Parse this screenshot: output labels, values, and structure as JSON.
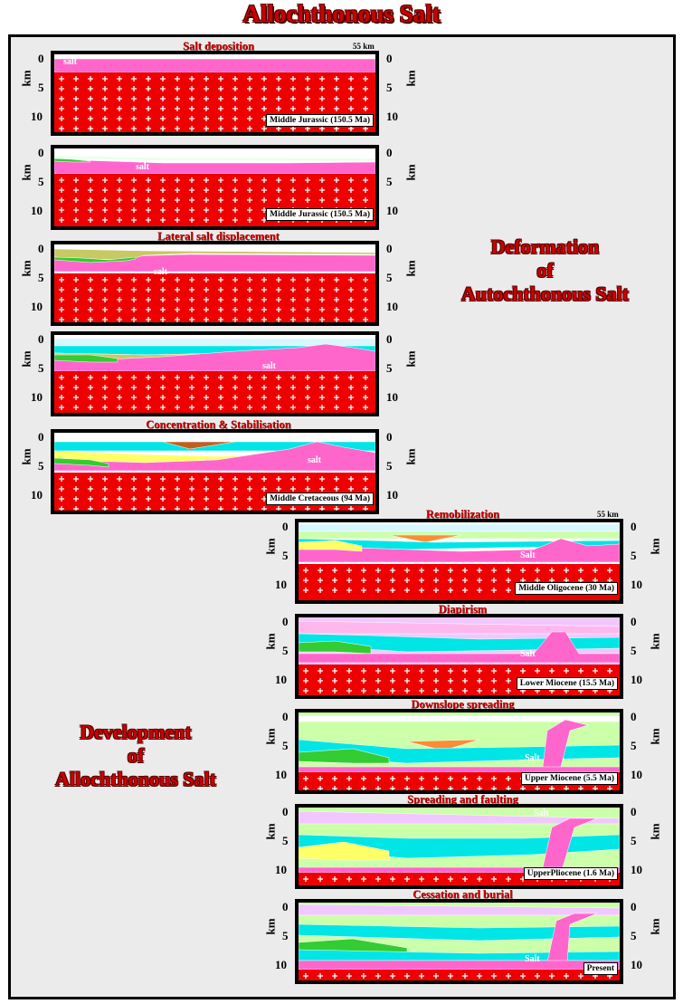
{
  "page_title": "Allochthonous Salt",
  "section_autochthonous": [
    "Deformation",
    "of",
    "Autochthonous Salt"
  ],
  "section_allochthonous": [
    "Development",
    "of",
    "Allochthonous Salt"
  ],
  "depth_unit": "km",
  "scale_label": "55 km",
  "colors": {
    "salt": "#ff66cc",
    "basement": "#ee0000",
    "frame_bg": "#ebebeb",
    "title": "#cc0000"
  },
  "panels": [
    {
      "title": "Salt deposition",
      "age": "Middle Jurassic (150.5 Ma)",
      "salt_label": "salt",
      "left_ticks": [
        "0",
        "5",
        "10"
      ],
      "right_ticks": [
        "0",
        "5",
        "10"
      ],
      "show_scale": true
    },
    {
      "title": "",
      "age": "Middle Jurassic (150.5 Ma)",
      "salt_label": "salt",
      "left_ticks": [
        "0",
        "5",
        "10"
      ],
      "right_ticks": [
        "0",
        "5",
        "10"
      ],
      "show_scale": false
    },
    {
      "title": "Lateral salt displacement",
      "age": "",
      "salt_label": "salt",
      "left_ticks": [
        "0",
        "5",
        "10"
      ],
      "right_ticks": [
        "0",
        "5",
        "10"
      ],
      "show_scale": false
    },
    {
      "title": "",
      "age": "",
      "salt_label": "salt",
      "left_ticks": [
        "0",
        "5",
        "10"
      ],
      "right_ticks": [
        "0",
        "5",
        "10"
      ],
      "show_scale": false
    },
    {
      "title": "Concentration & Stabilisation",
      "age": "Middle Cretaceous  (94 Ma)",
      "salt_label": "salt",
      "left_ticks": [
        "0",
        "5",
        "10"
      ],
      "right_ticks": [
        "0",
        "5",
        "10"
      ],
      "show_scale": false
    },
    {
      "title": "Remobilization",
      "age": "Middle Oligocene (30 Ma)",
      "salt_label": "Salt",
      "left_ticks": [
        "0",
        "5",
        "10"
      ],
      "right_ticks": [
        "0",
        "5",
        "10"
      ],
      "show_scale": true
    },
    {
      "title": "Diapirism",
      "age": "Lower Miocene  (15.5 Ma)",
      "salt_label": "Salt",
      "left_ticks": [
        "0",
        "5",
        "10"
      ],
      "right_ticks": [
        "0",
        "5",
        "10"
      ],
      "show_scale": false
    },
    {
      "title": "Downslope spreading",
      "age": "Upper Miocene (5.5 Ma)",
      "salt_label": "Salt",
      "left_ticks": [
        "0",
        "5",
        "10"
      ],
      "right_ticks": [
        "0",
        "5",
        "10"
      ],
      "show_scale": false
    },
    {
      "title": "Spreading and faulting",
      "age": "UpperPliocene (1.6 Ma)",
      "salt_label": "Salt",
      "left_ticks": [
        "0",
        "5",
        "10"
      ],
      "right_ticks": [
        "0",
        "5",
        "10"
      ],
      "show_scale": false
    },
    {
      "title": "Cessation and burial",
      "age": "Present",
      "salt_label": "Salt",
      "left_ticks": [
        "0",
        "5",
        "10"
      ],
      "right_ticks": [
        "0",
        "5",
        "10"
      ],
      "show_scale": false
    }
  ]
}
